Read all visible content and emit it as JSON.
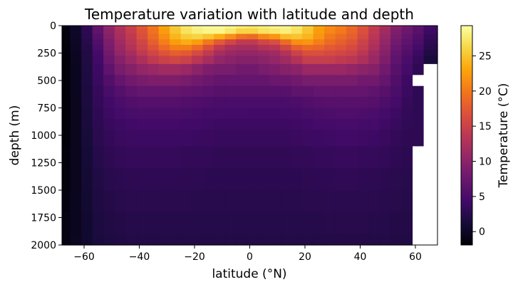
{
  "chart_data": {
    "type": "heatmap",
    "title": "Temperature variation with latitude and depth",
    "xlabel": "latitude (°N)",
    "ylabel": "depth (m)",
    "colorbar_label": "Temperature (°C)",
    "colormap": "inferno",
    "missing_color": "#ffffff",
    "x_range": [
      -68,
      68
    ],
    "y_range": [
      2000,
      0
    ],
    "x_ticks": [
      -60,
      -40,
      -20,
      0,
      20,
      40,
      60
    ],
    "x_tick_labels": [
      "−60",
      "−40",
      "−20",
      "0",
      "20",
      "40",
      "60"
    ],
    "y_ticks": [
      0,
      250,
      500,
      750,
      1000,
      1250,
      1500,
      1750,
      2000
    ],
    "y_tick_labels": [
      "0",
      "250",
      "500",
      "750",
      "1000",
      "1250",
      "1500",
      "1750",
      "2000"
    ],
    "colorbar_range": [
      -1.9,
      29.3
    ],
    "colorbar_ticks": [
      0,
      5,
      10,
      15,
      20,
      25
    ],
    "colorbar_tick_labels": [
      "0",
      "5",
      "10",
      "15",
      "20",
      "25"
    ],
    "latitudes": [
      -67,
      -63,
      -59,
      -55,
      -51,
      -47,
      -43,
      -39,
      -35,
      -31,
      -27,
      -23,
      -19,
      -15,
      -11,
      -7,
      -3,
      1,
      5,
      9,
      13,
      17,
      21,
      25,
      29,
      33,
      37,
      41,
      45,
      49,
      53,
      57,
      61,
      65
    ],
    "depths": [
      0,
      50,
      100,
      150,
      200,
      250,
      300,
      400,
      500,
      600,
      700,
      800,
      900,
      1000,
      1200,
      1400,
      1600,
      1800,
      2000
    ],
    "temperature": [
      [
        -1.0,
        0.5,
        3.0,
        7.0,
        10.5,
        13.0,
        15.0,
        17.5,
        20.0,
        23.0,
        25.5,
        27.5,
        28.5,
        29.0,
        29.0,
        28.5,
        28.0,
        27.5,
        28.0,
        28.5,
        28.5,
        27.5,
        25.5,
        23.0,
        21.5,
        20.5,
        19.0,
        17.0,
        14.5,
        12.0,
        9.5,
        8.0,
        6.5,
        4.5
      ],
      [
        -1.2,
        0.3,
        2.8,
        6.5,
        10.0,
        12.5,
        14.5,
        17.0,
        19.5,
        22.5,
        25.0,
        27.0,
        28.0,
        28.5,
        28.5,
        27.5,
        26.0,
        26.0,
        27.0,
        27.5,
        28.0,
        27.0,
        25.0,
        22.5,
        21.0,
        20.0,
        18.5,
        16.5,
        14.0,
        11.5,
        9.0,
        7.5,
        6.0,
        4.0
      ],
      [
        -1.3,
        0.2,
        2.6,
        6.0,
        9.5,
        12.0,
        14.0,
        16.5,
        19.0,
        21.5,
        24.0,
        25.5,
        26.0,
        25.0,
        23.5,
        21.5,
        19.5,
        19.0,
        21.0,
        22.0,
        24.5,
        25.0,
        24.0,
        22.0,
        20.0,
        19.0,
        18.0,
        16.0,
        13.5,
        11.0,
        8.5,
        7.0,
        5.5,
        3.5
      ],
      [
        -1.4,
        0.1,
        2.4,
        5.5,
        9.0,
        11.5,
        13.5,
        15.5,
        18.0,
        20.5,
        22.5,
        23.5,
        22.5,
        20.0,
        17.5,
        15.5,
        14.0,
        14.0,
        15.5,
        16.5,
        19.0,
        21.5,
        22.0,
        20.5,
        19.0,
        18.0,
        17.0,
        15.0,
        13.0,
        10.5,
        8.0,
        6.5,
        5.0,
        3.0
      ],
      [
        -1.5,
        0.0,
        2.2,
        5.0,
        8.5,
        11.0,
        13.0,
        15.0,
        17.0,
        19.0,
        20.5,
        20.5,
        19.0,
        16.5,
        14.0,
        12.5,
        12.0,
        12.0,
        13.0,
        13.5,
        15.5,
        18.0,
        19.0,
        18.5,
        17.5,
        17.0,
        16.0,
        14.5,
        12.5,
        10.0,
        7.5,
        6.0,
        4.5,
        2.5
      ],
      [
        -1.6,
        -0.1,
        2.0,
        4.5,
        8.0,
        10.5,
        12.0,
        14.0,
        15.5,
        17.0,
        18.0,
        17.5,
        16.0,
        14.0,
        12.0,
        11.0,
        10.5,
        10.5,
        11.0,
        11.5,
        13.0,
        15.0,
        16.5,
        16.5,
        16.0,
        15.5,
        15.0,
        13.5,
        11.5,
        9.5,
        7.0,
        5.5,
        4.0,
        2.0
      ],
      [
        -1.7,
        -0.2,
        1.9,
        4.2,
        7.5,
        9.5,
        11.0,
        12.5,
        14.0,
        15.0,
        15.5,
        15.0,
        13.5,
        12.0,
        10.5,
        10.0,
        9.5,
        9.5,
        10.0,
        10.5,
        11.5,
        13.0,
        14.5,
        14.5,
        14.5,
        14.0,
        13.5,
        12.5,
        11.0,
        9.0,
        6.5,
        5.0,
        3.5,
        1.5
      ],
      [
        -1.7,
        -0.3,
        1.8,
        4.0,
        6.5,
        8.5,
        9.5,
        10.5,
        11.0,
        11.5,
        11.5,
        11.0,
        10.0,
        9.0,
        8.5,
        8.5,
        8.0,
        8.0,
        8.5,
        9.0,
        9.5,
        10.0,
        11.0,
        11.0,
        11.0,
        11.0,
        10.5,
        10.0,
        9.5,
        8.0,
        6.0,
        4.5,
        3.0,
        null
      ],
      [
        -1.7,
        -0.3,
        1.8,
        3.8,
        5.5,
        7.0,
        8.0,
        8.5,
        9.0,
        9.0,
        9.0,
        8.5,
        8.0,
        7.5,
        7.0,
        7.0,
        7.0,
        7.0,
        7.0,
        7.5,
        7.5,
        8.0,
        8.5,
        8.5,
        8.5,
        8.5,
        8.5,
        8.0,
        8.0,
        7.0,
        5.5,
        4.0,
        null,
        null
      ],
      [
        -1.7,
        -0.3,
        1.7,
        3.5,
        4.8,
        5.8,
        6.5,
        7.0,
        7.0,
        7.0,
        7.0,
        6.8,
        6.5,
        6.2,
        6.0,
        6.0,
        6.0,
        6.0,
        6.0,
        6.0,
        6.0,
        6.5,
        6.5,
        7.0,
        7.0,
        7.0,
        7.0,
        7.0,
        6.5,
        6.0,
        5.0,
        3.8,
        3.0,
        null
      ],
      [
        -1.7,
        -0.4,
        1.6,
        3.2,
        4.3,
        5.0,
        5.5,
        5.8,
        5.8,
        5.8,
        5.8,
        5.6,
        5.4,
        5.2,
        5.0,
        5.0,
        5.0,
        5.0,
        5.0,
        5.0,
        5.0,
        5.2,
        5.5,
        5.8,
        6.0,
        6.0,
        6.0,
        6.0,
        5.8,
        5.2,
        4.5,
        3.5,
        3.0,
        null
      ],
      [
        -1.7,
        -0.4,
        1.5,
        3.0,
        3.9,
        4.5,
        4.8,
        5.0,
        5.0,
        5.0,
        5.0,
        4.8,
        4.7,
        4.6,
        4.5,
        4.5,
        4.5,
        4.4,
        4.4,
        4.4,
        4.5,
        4.6,
        4.8,
        5.0,
        5.2,
        5.3,
        5.3,
        5.2,
        5.0,
        4.6,
        4.0,
        3.3,
        3.0,
        null
      ],
      [
        -1.7,
        -0.4,
        1.4,
        2.8,
        3.6,
        4.0,
        4.3,
        4.4,
        4.4,
        4.4,
        4.4,
        4.3,
        4.2,
        4.1,
        4.0,
        4.0,
        4.0,
        4.0,
        4.0,
        4.0,
        4.0,
        4.1,
        4.3,
        4.5,
        4.6,
        4.7,
        4.7,
        4.6,
        4.5,
        4.1,
        3.6,
        3.1,
        3.0,
        null
      ],
      [
        -1.6,
        -0.4,
        1.3,
        2.6,
        3.3,
        3.7,
        3.9,
        4.0,
        4.0,
        4.0,
        4.0,
        3.9,
        3.8,
        3.7,
        3.6,
        3.6,
        3.6,
        3.6,
        3.6,
        3.6,
        3.6,
        3.7,
        3.9,
        4.0,
        4.1,
        4.2,
        4.2,
        4.1,
        4.0,
        3.7,
        3.3,
        3.0,
        2.9,
        null
      ],
      [
        -1.5,
        -0.4,
        1.1,
        2.3,
        2.9,
        3.2,
        3.4,
        3.4,
        3.4,
        3.4,
        3.4,
        3.3,
        3.2,
        3.2,
        3.1,
        3.1,
        3.1,
        3.1,
        3.1,
        3.1,
        3.1,
        3.2,
        3.3,
        3.4,
        3.5,
        3.6,
        3.6,
        3.5,
        3.4,
        3.2,
        3.0,
        2.8,
        null,
        null
      ],
      [
        -1.4,
        -0.4,
        0.9,
        2.0,
        2.5,
        2.8,
        2.9,
        3.0,
        3.0,
        3.0,
        3.0,
        2.9,
        2.9,
        2.8,
        2.8,
        2.8,
        2.8,
        2.8,
        2.8,
        2.8,
        2.8,
        2.8,
        2.9,
        3.0,
        3.0,
        3.1,
        3.1,
        3.0,
        2.9,
        2.8,
        2.6,
        2.5,
        null,
        null
      ],
      [
        -1.2,
        -0.3,
        0.8,
        1.8,
        2.2,
        2.5,
        2.6,
        2.6,
        2.6,
        2.6,
        2.6,
        2.6,
        2.5,
        2.5,
        2.5,
        2.5,
        2.5,
        2.5,
        2.5,
        2.5,
        2.5,
        2.5,
        2.6,
        2.6,
        2.7,
        2.7,
        2.7,
        2.7,
        2.6,
        2.5,
        2.4,
        2.3,
        null,
        null
      ],
      [
        -1.1,
        -0.3,
        0.7,
        1.6,
        2.0,
        2.2,
        2.3,
        2.3,
        2.3,
        2.3,
        2.3,
        2.3,
        2.3,
        2.3,
        2.3,
        2.3,
        2.3,
        2.3,
        2.3,
        2.3,
        2.3,
        2.3,
        2.3,
        2.3,
        2.4,
        2.4,
        2.4,
        2.4,
        2.3,
        2.3,
        2.2,
        2.1,
        null,
        null
      ],
      [
        -1.0,
        -0.2,
        0.6,
        1.4,
        1.8,
        2.0,
        2.1,
        2.1,
        2.1,
        2.1,
        2.1,
        2.1,
        2.1,
        2.1,
        2.1,
        2.1,
        2.1,
        2.1,
        2.1,
        2.1,
        2.1,
        2.1,
        2.1,
        2.1,
        2.2,
        2.2,
        2.2,
        2.2,
        2.1,
        2.1,
        2.0,
        2.0,
        null,
        null
      ]
    ]
  }
}
